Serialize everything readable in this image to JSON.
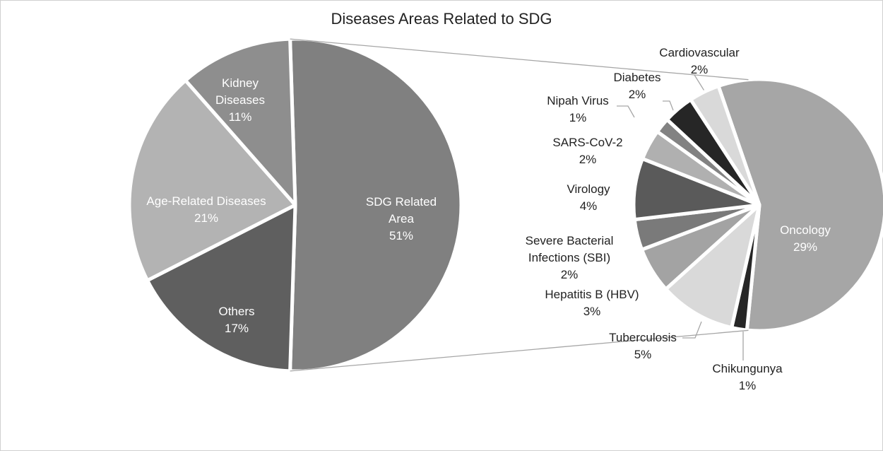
{
  "chart_data": [
    {
      "type": "pie",
      "title": "Diseases Areas Related to SDG",
      "categories": [
        "SDG Related Area",
        "Others",
        "Age-Related Diseases",
        "Kidney Diseases"
      ],
      "values": [
        51,
        17,
        21,
        11
      ],
      "value_labels": [
        "51%",
        "17%",
        "21%",
        "11%"
      ],
      "colors": [
        "#808080",
        "#5f5f5f",
        "#b3b3b3",
        "#8e8e8e"
      ]
    },
    {
      "type": "pie",
      "categories": [
        "Oncology",
        "Chikungunya",
        "Tuberculosis",
        "Hepatitis B (HBV)",
        "Severe Bacterial Infections (SBI)",
        "Virology",
        "SARS-CoV-2",
        "Nipah Virus",
        "Diabetes",
        "Cardiovascular"
      ],
      "values": [
        29,
        1,
        5,
        3,
        2,
        4,
        2,
        1,
        2,
        2
      ],
      "value_labels": [
        "29%",
        "1%",
        "5%",
        "3%",
        "2%",
        "4%",
        "2%",
        "1%",
        "2%",
        "2%"
      ],
      "colors": [
        "#a6a6a6",
        "#262626",
        "#d9d9d9",
        "#a3a3a3",
        "#7a7a7a",
        "#5a5a5a",
        "#b0b0b0",
        "#828282",
        "#262626",
        "#d9d9d9"
      ]
    }
  ]
}
